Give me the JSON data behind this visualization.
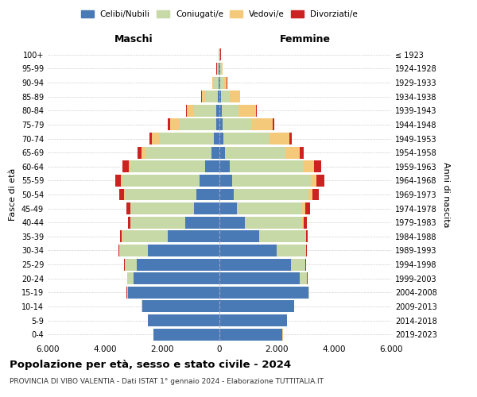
{
  "age_groups": [
    "0-4",
    "5-9",
    "10-14",
    "15-19",
    "20-24",
    "25-29",
    "30-34",
    "35-39",
    "40-44",
    "45-49",
    "50-54",
    "55-59",
    "60-64",
    "65-69",
    "70-74",
    "75-79",
    "80-84",
    "85-89",
    "90-94",
    "95-99",
    "100+"
  ],
  "birth_years": [
    "2019-2023",
    "2014-2018",
    "2009-2013",
    "2004-2008",
    "1999-2003",
    "1994-1998",
    "1989-1993",
    "1984-1988",
    "1979-1983",
    "1974-1978",
    "1969-1973",
    "1964-1968",
    "1959-1963",
    "1954-1958",
    "1949-1953",
    "1944-1948",
    "1939-1943",
    "1934-1938",
    "1929-1933",
    "1924-1928",
    "≤ 1923"
  ],
  "male": {
    "celibi": [
      2300,
      2500,
      2700,
      3200,
      3000,
      2900,
      2500,
      1800,
      1200,
      900,
      800,
      700,
      500,
      280,
      200,
      120,
      100,
      60,
      30,
      20,
      10
    ],
    "coniugati": [
      5,
      5,
      15,
      30,
      200,
      400,
      1000,
      1600,
      1900,
      2200,
      2500,
      2700,
      2600,
      2300,
      1900,
      1300,
      800,
      430,
      160,
      60,
      20
    ],
    "vedovi": [
      5,
      5,
      5,
      5,
      10,
      5,
      5,
      10,
      10,
      20,
      30,
      50,
      80,
      150,
      250,
      300,
      250,
      130,
      50,
      15,
      5
    ],
    "divorziati": [
      2,
      2,
      2,
      5,
      10,
      15,
      30,
      50,
      80,
      130,
      180,
      200,
      200,
      120,
      100,
      80,
      20,
      15,
      10,
      5,
      2
    ]
  },
  "female": {
    "nubili": [
      2200,
      2350,
      2600,
      3100,
      2800,
      2500,
      2000,
      1400,
      900,
      600,
      500,
      450,
      350,
      200,
      150,
      100,
      80,
      60,
      30,
      20,
      10
    ],
    "coniugate": [
      5,
      5,
      15,
      40,
      250,
      500,
      1000,
      1600,
      2000,
      2300,
      2600,
      2750,
      2600,
      2100,
      1600,
      1000,
      600,
      300,
      130,
      60,
      20
    ],
    "vedove": [
      5,
      5,
      5,
      5,
      10,
      10,
      20,
      30,
      50,
      100,
      150,
      200,
      350,
      500,
      700,
      750,
      600,
      350,
      100,
      30,
      10
    ],
    "divorziate": [
      2,
      2,
      2,
      5,
      10,
      15,
      30,
      60,
      100,
      180,
      230,
      280,
      250,
      150,
      90,
      60,
      20,
      15,
      10,
      5,
      2
    ]
  },
  "colors": {
    "celibi": "#4a7ab5",
    "coniugati": "#c8d9a8",
    "vedovi": "#f5c97a",
    "divorziati": "#cc2222"
  },
  "xlim": 6000,
  "title": "Popolazione per età, sesso e stato civile - 2024",
  "subtitle": "PROVINCIA DI VIBO VALENTIA - Dati ISTAT 1° gennaio 2024 - Elaborazione TUTTITALIA.IT",
  "xlabel_left": "Maschi",
  "xlabel_right": "Femmine",
  "ylabel": "Fasce di età",
  "ylabel_right": "Anni di nascita",
  "background_color": "#ffffff",
  "grid_color": "#cccccc"
}
